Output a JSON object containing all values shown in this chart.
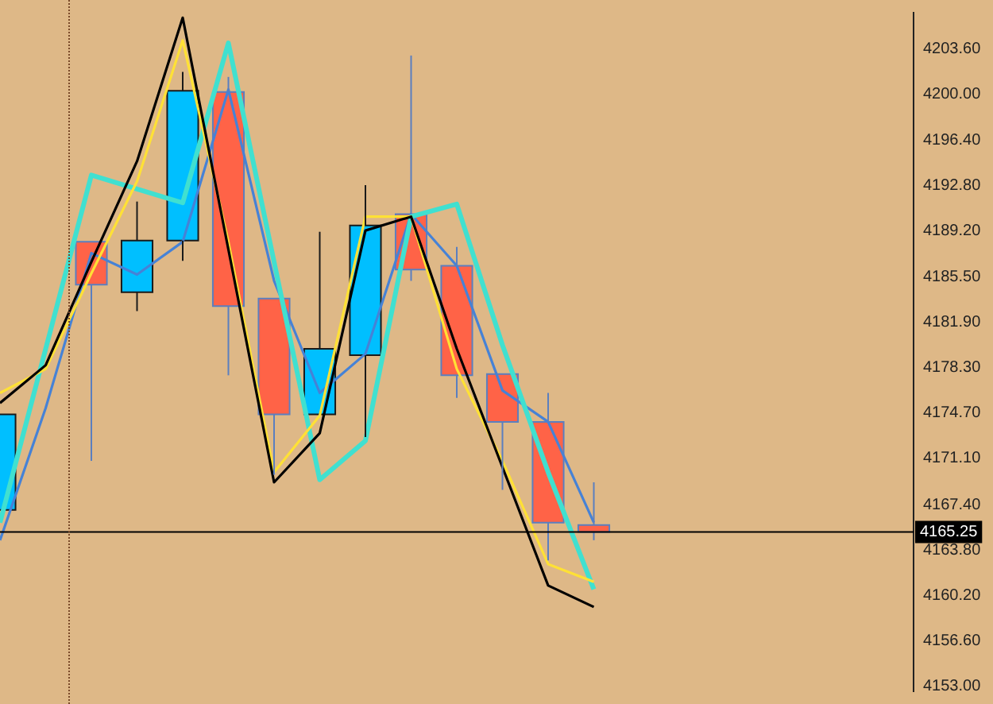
{
  "chart_data": {
    "type": "candlestick",
    "categories": [
      null,
      null,
      null,
      null,
      null,
      null,
      null,
      null,
      null,
      null,
      null,
      null,
      null,
      null,
      null,
      null,
      null,
      null,
      null,
      null,
      null
    ],
    "ohlc": [
      [
        4167.0,
        4174.6,
        4167.0,
        4174.6
      ],
      null,
      [
        4188.3,
        4188.3,
        4170.9,
        4184.9
      ],
      [
        4184.3,
        4191.5,
        4182.8,
        4188.4
      ],
      [
        4188.4,
        4201.8,
        4186.8,
        4200.3
      ],
      [
        4200.2,
        4201.4,
        4177.7,
        4183.2
      ],
      [
        4183.8,
        4183.8,
        4169.8,
        4174.6
      ],
      [
        4174.6,
        4189.1,
        4174.6,
        4179.8
      ],
      [
        4179.3,
        4192.8,
        4172.8,
        4189.6
      ],
      [
        4190.5,
        4203.1,
        4185.2,
        4186.1
      ],
      [
        4186.4,
        4187.9,
        4175.9,
        4177.7
      ],
      [
        4177.8,
        4177.8,
        4168.6,
        4174.0
      ],
      [
        4174.0,
        4176.3,
        4163.0,
        4166.0
      ],
      [
        4165.8,
        4169.2,
        4164.6,
        4165.25
      ],
      null,
      null,
      null,
      null,
      null,
      null,
      null
    ],
    "colors": [
      "#00bfff",
      null,
      "#ff6347",
      "#00bfff",
      "#00bfff",
      "#ff6347",
      "#ff6347",
      "#00bfff",
      "#00bfff",
      "#ff6347",
      "#ff6347",
      "#ff6347",
      "#ff6347",
      "#ff6347",
      null,
      null,
      null,
      null,
      null,
      null,
      null
    ],
    "series": [
      {
        "type": "line",
        "color": "#000000",
        "values": [
          4175.5,
          4178.5,
          4186.7,
          4194.7,
          4206.1,
          4187.7,
          4169.2,
          4173.1,
          4189.2,
          4190.3,
          4179.8,
          4170.4,
          4161.0,
          4159.3,
          null,
          null,
          null,
          null,
          null,
          null,
          null
        ]
      },
      {
        "type": "line",
        "color": "#ffe135",
        "values": [
          4176.3,
          4178.2,
          4185.8,
          4193.1,
          4204.3,
          4188.3,
          4170.0,
          4174.5,
          4190.3,
          4190.3,
          4178.2,
          4170.9,
          4162.7,
          4161.3,
          null,
          null,
          null,
          null,
          null,
          null,
          null
        ]
      },
      {
        "type": "line",
        "color": "#40e0d0",
        "values": [
          4166.0,
          4179.8,
          4193.6,
          4192.5,
          4191.4,
          4204.1,
          4186.7,
          4169.4,
          4172.5,
          4190.3,
          4191.3,
          4180.1,
          4170.0,
          4160.7,
          null,
          null,
          null,
          null,
          null,
          null,
          null
        ]
      },
      {
        "type": "line",
        "color": "#4682d6",
        "values": [
          4164.6,
          4175.1,
          4187.4,
          4185.7,
          4188.3,
          4200.4,
          4185.2,
          4176.3,
          4179.4,
          4190.5,
          4186.4,
          4176.5,
          4174.0,
          4166.0,
          null,
          null,
          null,
          null,
          null,
          null,
          null
        ]
      }
    ],
    "ylim": [
      4152.6,
      4206.5
    ],
    "yticks": [
      {
        "value": 4153.0,
        "label": "4153.00"
      },
      {
        "value": 4156.6,
        "label": "4156.60"
      },
      {
        "value": 4160.2,
        "label": "4160.20"
      },
      {
        "value": 4163.8,
        "label": "4163.80"
      },
      {
        "value": 4167.4,
        "label": "4167.40"
      },
      {
        "value": 4171.1,
        "label": "4171.10"
      },
      {
        "value": 4174.7,
        "label": "4174.70"
      },
      {
        "value": 4178.3,
        "label": "4178.30"
      },
      {
        "value": 4181.9,
        "label": "4181.90"
      },
      {
        "value": 4185.5,
        "label": "4185.50"
      },
      {
        "value": 4189.2,
        "label": "4189.20"
      },
      {
        "value": 4192.8,
        "label": "4192.80"
      },
      {
        "value": 4196.4,
        "label": "4196.40"
      },
      {
        "value": 4200.0,
        "label": "4200.00"
      },
      {
        "value": 4203.6,
        "label": "4203.60"
      }
    ],
    "ref_lines": [
      {
        "axis": "y",
        "value": 4165.25,
        "label": "4165.25",
        "color": "#000000"
      }
    ],
    "grid": false,
    "legend": false
  }
}
